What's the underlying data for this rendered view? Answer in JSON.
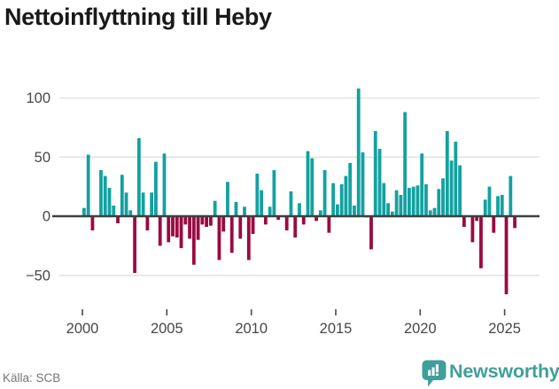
{
  "title": "Nettoinflyttning till Heby",
  "footer": {
    "source": "Källa: SCB",
    "brand": "Newsworthy"
  },
  "colors": {
    "positive_bar": "#13a1a0",
    "negative_bar": "#9b0a41",
    "gridline": "#e3e3e3",
    "zero_line": "#3f3f3f",
    "axis_text": "#474747",
    "tick_mark": "#4a4a4a",
    "title_text": "#191919",
    "source_text": "#757575",
    "brand_teal": "#3f9f9c",
    "background": "#ffffff"
  },
  "chart_data": {
    "type": "bar",
    "title": "Nettoinflyttning till Heby",
    "x": {
      "frequency": "quarterly",
      "start": "2000-Q1",
      "end": "2025-Q3"
    },
    "x_tick_labels": [
      "2000",
      "2005",
      "2010",
      "2015",
      "2020",
      "2025"
    ],
    "y_ticks": [
      100,
      50,
      0,
      -50
    ],
    "y_tick_labels": [
      "100",
      "50",
      "0",
      "−50"
    ],
    "ylim": [
      -75,
      115
    ],
    "grid": "horizontal",
    "legend": "none",
    "series": [
      {
        "name": "Nettoinflyttning",
        "values": [
          7,
          52,
          -12,
          0,
          39,
          34,
          24,
          9,
          -6,
          35,
          20,
          5,
          -48,
          66,
          20,
          -12,
          20,
          46,
          -25,
          53,
          -22,
          -17,
          -18,
          -27,
          -7,
          -19,
          -41,
          -20,
          -7,
          -9,
          -8,
          13,
          -37,
          -13,
          29,
          -31,
          12,
          -19,
          8,
          -37,
          -15,
          36,
          22,
          -7,
          8,
          39,
          -3,
          0,
          -12,
          21,
          -18,
          11,
          -7,
          55,
          49,
          -4,
          5,
          39,
          -14,
          28,
          10,
          27,
          34,
          45,
          9,
          108,
          54,
          -1,
          -28,
          72,
          57,
          28,
          11,
          4,
          22,
          18,
          88,
          24,
          25,
          26,
          53,
          27,
          5,
          7,
          23,
          32,
          72,
          47,
          63,
          43,
          -9,
          0,
          -22,
          -4,
          -44,
          14,
          25,
          -14,
          17,
          18,
          -66,
          34,
          -10
        ]
      }
    ]
  }
}
